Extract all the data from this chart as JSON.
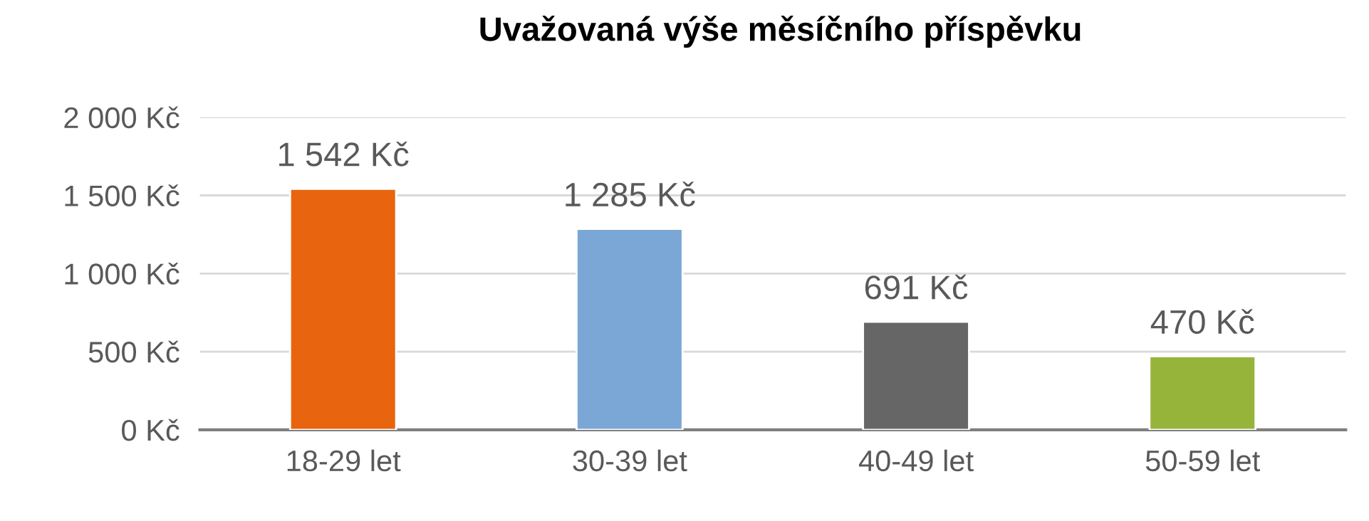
{
  "chart_data": {
    "type": "bar",
    "title": "Uvažovaná výše měsíčního příspěvku",
    "categories": [
      "18-29 let",
      "30-39 let",
      "40-49 let",
      "50-59 let"
    ],
    "values": [
      1542,
      1285,
      691,
      470
    ],
    "colors": [
      "#e8640e",
      "#7ba7d6",
      "#666666",
      "#97b43a"
    ],
    "value_labels": [
      "1 542 Kč",
      "1 285 Kč",
      "691 Kč",
      "470 Kč"
    ],
    "ylim": [
      0,
      2000
    ],
    "yticks": [
      {
        "value": 0,
        "label": "0 Kč"
      },
      {
        "value": 500,
        "label": "500 Kč"
      },
      {
        "value": 1000,
        "label": "1 000 Kč"
      },
      {
        "value": 1500,
        "label": "1 500 Kč"
      },
      {
        "value": 2000,
        "label": "2 000 Kč"
      }
    ],
    "grid": "y",
    "legend": false
  }
}
